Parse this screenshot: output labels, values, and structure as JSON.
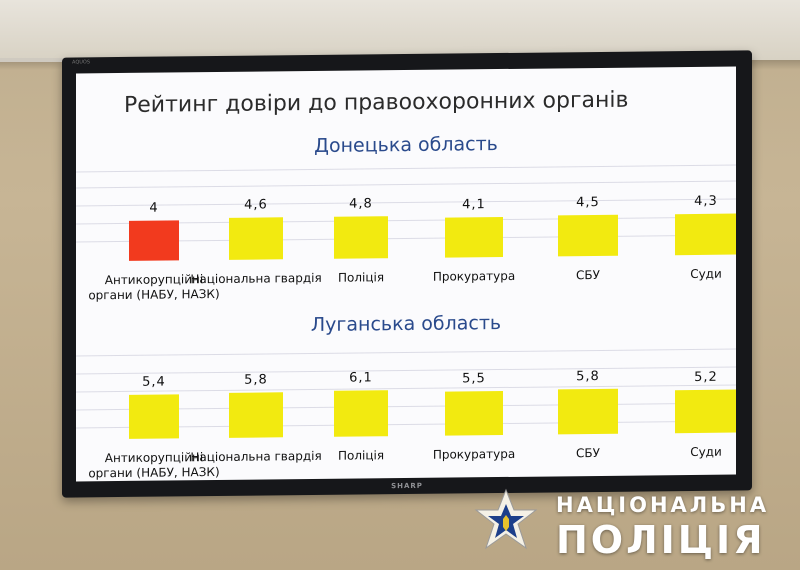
{
  "slide": {
    "title": "Рейтинг довіри до правоохоронних органів",
    "tv_brand": "SHARP",
    "tv_top_label": "AQUOS"
  },
  "regions": [
    {
      "name": "Донецька область",
      "items": [
        {
          "label": "Антикорупційні органи (НАБУ, НАЗК)",
          "value": "4",
          "color": "#f23a1e"
        },
        {
          "label": "Національна гвардія",
          "value": "4,6",
          "color": "#f2ea10"
        },
        {
          "label": "Поліція",
          "value": "4,8",
          "color": "#f2ea10"
        },
        {
          "label": "Прокуратура",
          "value": "4,1",
          "color": "#f2ea10"
        },
        {
          "label": "СБУ",
          "value": "4,5",
          "color": "#f2ea10"
        },
        {
          "label": "Суди",
          "value": "4,3",
          "color": "#f2ea10"
        }
      ]
    },
    {
      "name": "Луганська область",
      "items": [
        {
          "label": "Антикорупційні органи (НАБУ, НАЗК)",
          "value": "5,4",
          "color": "#f2ea10"
        },
        {
          "label": "Національна гвардія",
          "value": "5,8",
          "color": "#f2ea10"
        },
        {
          "label": "Поліція",
          "value": "6,1",
          "color": "#f2ea10"
        },
        {
          "label": "Прокуратура",
          "value": "5,5",
          "color": "#f2ea10"
        },
        {
          "label": "СБУ",
          "value": "5,8",
          "color": "#f2ea10"
        },
        {
          "label": "Суди",
          "value": "5,2",
          "color": "#f2ea10"
        }
      ]
    }
  ],
  "watermark": {
    "line1": "НАЦІОНАЛЬНА",
    "line2": "ПОЛІЦІЯ",
    "icon": "police-star-icon"
  }
}
